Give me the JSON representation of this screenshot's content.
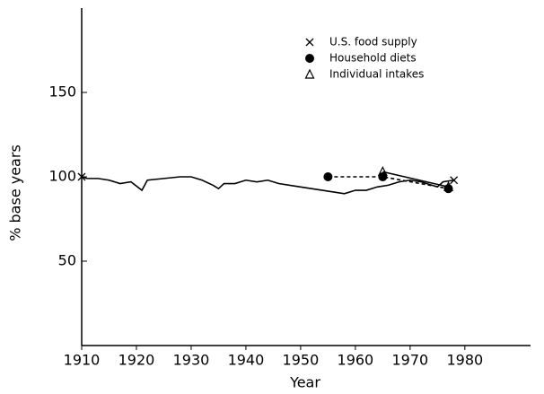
{
  "chart_data": {
    "type": "line",
    "xlabel": "Year",
    "ylabel": "% base years",
    "xlim": [
      1910,
      1992
    ],
    "xticks": [
      1910,
      1920,
      1930,
      1940,
      1950,
      1960,
      1970,
      1980
    ],
    "ylim": [
      0,
      200
    ],
    "yticks": [
      50,
      100,
      150
    ],
    "legend": "upper right",
    "series": [
      {
        "name": "U.S. food supply",
        "color": "#000000",
        "marker": "x",
        "linestyle": "solid",
        "x": [
          1910,
          1911,
          1913,
          1915,
          1917,
          1919,
          1921,
          1922,
          1925,
          1928,
          1930,
          1932,
          1934,
          1935,
          1936,
          1938,
          1940,
          1942,
          1944,
          1946,
          1948,
          1950,
          1952,
          1954,
          1956,
          1958,
          1960,
          1962,
          1964,
          1966,
          1968,
          1970,
          1972,
          1974,
          1975,
          1976,
          1978
        ],
        "values": [
          100,
          99,
          99,
          98,
          96,
          97,
          92,
          98,
          99,
          100,
          100,
          98,
          95,
          93,
          96,
          96,
          98,
          97,
          98,
          96,
          95,
          94,
          93,
          92,
          91,
          90,
          92,
          92,
          94,
          95,
          97,
          98,
          97,
          95,
          94,
          97,
          98
        ]
      },
      {
        "name": "Household diets",
        "color": "#000000",
        "marker": "o",
        "linestyle": "dashed",
        "x": [
          1955,
          1965,
          1977
        ],
        "values": [
          100,
          100,
          93
        ]
      },
      {
        "name": "Individual intakes",
        "color": "#000000",
        "marker": "^",
        "linestyle": "solid",
        "x": [
          1965,
          1977
        ],
        "values": [
          103,
          94
        ]
      }
    ]
  }
}
